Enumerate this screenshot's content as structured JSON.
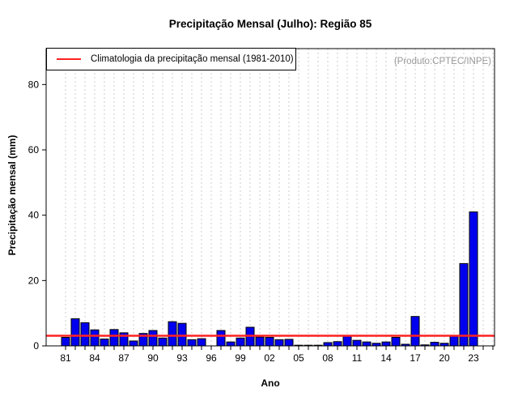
{
  "title": "Precipitação Mensal (Julho): Região 85",
  "annotation": "(Produto:CPTEC/INPE)",
  "legend": {
    "label": "Climatologia da precipitação mensal (1981-2010)"
  },
  "chart_data": {
    "type": "bar",
    "title": "Precipitação Mensal (Julho): Região 85",
    "xlabel": "Ano",
    "ylabel": "Precipitação mensal (mm)",
    "years": [
      1981,
      1982,
      1983,
      1984,
      1985,
      1986,
      1987,
      1988,
      1989,
      1990,
      1991,
      1992,
      1993,
      1994,
      1995,
      1996,
      1997,
      1998,
      1999,
      2000,
      2001,
      2002,
      2003,
      2004,
      2005,
      2006,
      2007,
      2008,
      2009,
      2010,
      2011,
      2012,
      2013,
      2014,
      2015,
      2016,
      2017,
      2018,
      2019,
      2020,
      2021,
      2022,
      2023
    ],
    "values": [
      2.6,
      8.3,
      7.1,
      4.9,
      2.1,
      5.0,
      4.0,
      1.5,
      3.8,
      4.7,
      2.4,
      7.4,
      6.9,
      1.9,
      2.2,
      0,
      4.7,
      1.2,
      2.4,
      5.7,
      2.7,
      2.6,
      1.9,
      2.0,
      0.2,
      0.2,
      0.2,
      1.0,
      1.3,
      3.0,
      1.7,
      1.2,
      0.8,
      1.2,
      2.6,
      0.5,
      9.0,
      0.3,
      1.1,
      0.8,
      3.0,
      25.2,
      41.0
    ],
    "x_tick_labels": [
      "81",
      "84",
      "87",
      "90",
      "93",
      "96",
      "99",
      "02",
      "05",
      "08",
      "11",
      "14",
      "17",
      "20",
      "23"
    ],
    "x_tick_step": 3,
    "yticks": [
      0,
      20,
      40,
      60,
      80
    ],
    "ylim": [
      0,
      91
    ],
    "grid_years_end": 2025,
    "climatology_line": 3.1,
    "legend_label": "Climatologia da precipitação mensal (1981-2010)",
    "legend_position": "top-left",
    "grid": "vertical-dashed",
    "colors": {
      "bar_fill": "#0000EE",
      "bar_border": "#000000",
      "climatology": "#FF2222",
      "grid": "#CCCCCC",
      "axis": "#000000",
      "annotation": "#999999"
    }
  }
}
